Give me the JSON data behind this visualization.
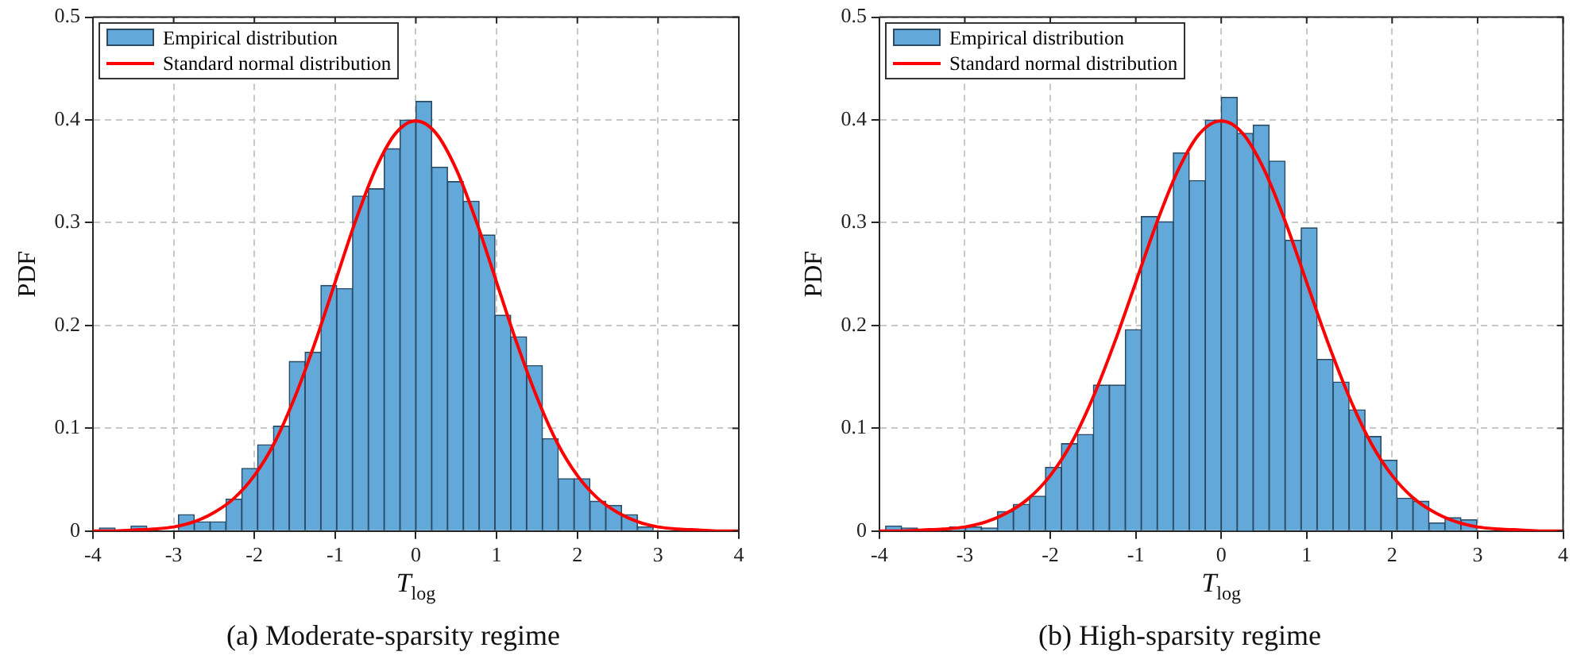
{
  "chart_data": [
    {
      "type": "histogram",
      "xlabel": "T$_{log}$",
      "ylabel": "PDF",
      "xlim": [
        -4,
        4
      ],
      "xticks": [
        -4,
        -3,
        -2,
        -1,
        0,
        1,
        2,
        3,
        4
      ],
      "ylim": [
        0,
        0.5
      ],
      "yticks": [
        0,
        0.1,
        0.2,
        0.3,
        0.4,
        0.5
      ],
      "grid": true,
      "legend": "top left",
      "annotations": [
        "(a)  Moderate-sparsity regime"
      ],
      "bins": [
        -3.92,
        -3.724,
        -3.528,
        -3.332,
        -3.136,
        -2.94,
        -2.744,
        -2.548,
        -2.352,
        -2.156,
        -1.96,
        -1.764,
        -1.568,
        -1.372,
        -1.176,
        -0.98,
        -0.784,
        -0.588,
        -0.392,
        -0.196,
        0,
        0.196,
        0.392,
        0.588,
        0.784,
        0.98,
        1.176,
        1.372,
        1.568,
        1.764,
        1.96,
        2.156,
        2.352,
        2.548,
        2.744,
        2.94,
        3.136,
        3.332,
        3.528,
        3.724,
        3.92
      ],
      "series": [
        {
          "name": "Empirical distribution",
          "type": "histogram",
          "color": "#62a8d8",
          "values": [
            0.003,
            0,
            0.005,
            0,
            0,
            0.016,
            0.009,
            0.009,
            0.031,
            0.061,
            0.084,
            0.102,
            0.165,
            0.174,
            0.239,
            0.236,
            0.326,
            0.333,
            0.372,
            0.4,
            0.418,
            0.354,
            0.34,
            0.321,
            0.288,
            0.21,
            0.189,
            0.161,
            0.09,
            0.051,
            0.051,
            0.029,
            0.025,
            0.016,
            0.004,
            0,
            0,
            0,
            0,
            0
          ]
        },
        {
          "name": "Standard normal distribution",
          "type": "line",
          "color": "#ff0000",
          "x": [
            -4,
            -3.75,
            -3.5,
            -3.25,
            -3,
            -2.75,
            -2.5,
            -2.25,
            -2,
            -1.75,
            -1.5,
            -1.25,
            -1,
            -0.75,
            -0.5,
            -0.25,
            0,
            0.25,
            0.5,
            0.75,
            1,
            1.25,
            1.5,
            1.75,
            2,
            2.25,
            2.5,
            2.75,
            3,
            3.25,
            3.5,
            3.75,
            4
          ],
          "values": [
            0,
            0,
            0.001,
            0.002,
            0.004,
            0.009,
            0.018,
            0.032,
            0.054,
            0.086,
            0.13,
            0.183,
            0.242,
            0.301,
            0.352,
            0.387,
            0.399,
            0.387,
            0.352,
            0.301,
            0.242,
            0.183,
            0.13,
            0.086,
            0.054,
            0.032,
            0.018,
            0.009,
            0.004,
            0.002,
            0.001,
            0,
            0
          ]
        }
      ]
    },
    {
      "type": "histogram",
      "xlabel": "T$_{log}$",
      "ylabel": "PDF",
      "xlim": [
        -4,
        4
      ],
      "xticks": [
        -4,
        -3,
        -2,
        -1,
        0,
        1,
        2,
        3,
        4
      ],
      "ylim": [
        0,
        0.5
      ],
      "yticks": [
        0,
        0.1,
        0.2,
        0.3,
        0.4,
        0.5
      ],
      "grid": true,
      "legend": "top left",
      "annotations": [
        "(b)  High-sparsity regime"
      ],
      "bins": [
        -3.927,
        -3.74,
        -3.553,
        -3.366,
        -3.179,
        -2.992,
        -2.805,
        -2.618,
        -2.431,
        -2.244,
        -2.057,
        -1.87,
        -1.683,
        -1.496,
        -1.309,
        -1.122,
        -0.935,
        -0.748,
        -0.561,
        -0.374,
        -0.187,
        0,
        0.187,
        0.374,
        0.561,
        0.748,
        0.935,
        1.122,
        1.309,
        1.496,
        1.683,
        1.87,
        2.057,
        2.244,
        2.431,
        2.618,
        2.805,
        2.992,
        3.179,
        3.366,
        3.553,
        3.74,
        3.927
      ],
      "series": [
        {
          "name": "Empirical distribution",
          "type": "histogram",
          "color": "#62a8d8",
          "values": [
            0.005,
            0.003,
            0,
            0,
            0.004,
            0.004,
            0.003,
            0.019,
            0.026,
            0.034,
            0.062,
            0.085,
            0.094,
            0.142,
            0.142,
            0.196,
            0.306,
            0.301,
            0.368,
            0.341,
            0.4,
            0.422,
            0.387,
            0.395,
            0.36,
            0.283,
            0.295,
            0.167,
            0.145,
            0.118,
            0.092,
            0.069,
            0.032,
            0.029,
            0.008,
            0.013,
            0.011,
            0,
            0,
            0,
            0,
            0
          ]
        },
        {
          "name": "Standard normal distribution",
          "type": "line",
          "color": "#ff0000",
          "x": [
            -4,
            -3.75,
            -3.5,
            -3.25,
            -3,
            -2.75,
            -2.5,
            -2.25,
            -2,
            -1.75,
            -1.5,
            -1.25,
            -1,
            -0.75,
            -0.5,
            -0.25,
            0,
            0.25,
            0.5,
            0.75,
            1,
            1.25,
            1.5,
            1.75,
            2,
            2.25,
            2.5,
            2.75,
            3,
            3.25,
            3.5,
            3.75,
            4
          ],
          "values": [
            0,
            0,
            0.001,
            0.002,
            0.004,
            0.009,
            0.018,
            0.032,
            0.054,
            0.086,
            0.13,
            0.183,
            0.242,
            0.301,
            0.352,
            0.387,
            0.399,
            0.387,
            0.352,
            0.301,
            0.242,
            0.183,
            0.13,
            0.086,
            0.054,
            0.032,
            0.018,
            0.009,
            0.004,
            0.002,
            0.001,
            0,
            0
          ]
        }
      ]
    }
  ]
}
